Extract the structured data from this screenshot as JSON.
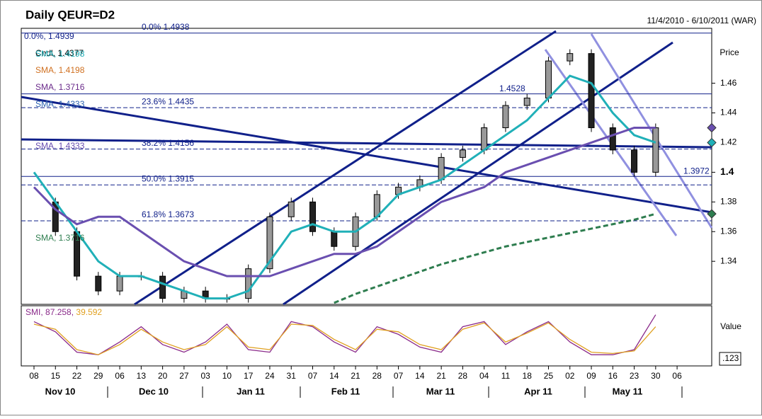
{
  "chart_data": {
    "type": "candlestick",
    "title": "Daily QEUR=D2",
    "subtitle": "11/4/2010 - 6/10/2011 (WAR)",
    "y_axis_label": "Price",
    "categories": [
      "08",
      "15",
      "22",
      "29",
      "06",
      "13",
      "20",
      "27",
      "03",
      "10",
      "17",
      "24",
      "31",
      "07",
      "14",
      "21",
      "28",
      "07",
      "14",
      "21",
      "28",
      "04",
      "11",
      "18",
      "25",
      "02",
      "09",
      "16",
      "23",
      "30",
      "06"
    ],
    "months": [
      "Nov 10",
      "Dec 10",
      "Jan 11",
      "Feb 11",
      "Mar 11",
      "Apr 11",
      "May 11"
    ],
    "ylim": [
      1.311,
      1.497
    ],
    "yticks": [
      1.34,
      1.36,
      1.38,
      1.4,
      1.42,
      1.44,
      1.46
    ],
    "close": [
      1.38,
      1.36,
      1.33,
      1.32,
      1.33,
      1.33,
      1.315,
      1.32,
      1.315,
      1.315,
      1.335,
      1.37,
      1.38,
      1.36,
      1.35,
      1.37,
      1.385,
      1.39,
      1.395,
      1.41,
      1.415,
      1.43,
      1.445,
      1.45,
      1.475,
      1.48,
      1.43,
      1.415,
      1.4,
      1.43,
      null
    ],
    "series": [
      {
        "name": "SMA, 1.4198",
        "color": "#20b0b8",
        "values": [
          1.4,
          1.38,
          1.36,
          1.34,
          1.33,
          1.33,
          1.325,
          1.32,
          1.315,
          1.315,
          1.32,
          1.34,
          1.36,
          1.365,
          1.36,
          1.36,
          1.37,
          1.385,
          1.39,
          1.395,
          1.405,
          1.415,
          1.425,
          1.435,
          1.45,
          1.465,
          1.46,
          1.44,
          1.425,
          1.42,
          null
        ]
      },
      {
        "name": "SMA, 1.4333",
        "color": "#6a4fb0",
        "values": [
          1.39,
          1.375,
          1.365,
          1.37,
          1.37,
          1.36,
          1.35,
          1.34,
          1.335,
          1.33,
          1.33,
          1.33,
          1.335,
          1.34,
          1.345,
          1.345,
          1.35,
          1.36,
          1.37,
          1.38,
          1.385,
          1.39,
          1.4,
          1.405,
          1.41,
          1.415,
          1.42,
          1.425,
          1.43,
          1.43,
          null
        ]
      },
      {
        "name": "SMA, 1.3716",
        "color": "#2e7d4f",
        "dashed": true,
        "values": [
          null,
          null,
          null,
          null,
          null,
          null,
          null,
          null,
          null,
          null,
          null,
          null,
          null,
          null,
          1.312,
          1.318,
          1.323,
          1.328,
          1.333,
          1.338,
          1.342,
          1.346,
          1.35,
          1.353,
          1.356,
          1.359,
          1.362,
          1.365,
          1.368,
          1.372,
          null
        ]
      }
    ],
    "legend": [
      "0.0%, 1.4939",
      "Cndl, 1.4377",
      "SMA, 1.4198",
      "SMA, 1.3716",
      "SMA, 1.4333"
    ],
    "fib": [
      {
        "label": "0.0%   1.4938",
        "value": 1.4938
      },
      {
        "label": "23.6%   1.4435",
        "value": 1.4435
      },
      {
        "label": "38.2%   1.4156",
        "value": 1.4156
      },
      {
        "label": "50.0%   1.3915",
        "value": 1.3915
      },
      {
        "label": "61.8%   1.3673",
        "value": 1.3673
      }
    ],
    "price_labels": [
      {
        "label": "1.3972",
        "value": 1.3972
      },
      {
        "label": "1.4528",
        "value": 1.4528
      }
    ],
    "smi": {
      "legend_name": "SMI,",
      "legend_v1": "87.258,",
      "legend_v2": "39.592",
      "axis_label": "Value",
      "box_label": ".123",
      "ylim": [
        -100,
        100
      ],
      "series": [
        {
          "color": "#8a2a8a",
          "values": [
            60,
            20,
            -60,
            -70,
            -20,
            40,
            -30,
            -60,
            -20,
            50,
            -50,
            -60,
            60,
            40,
            -20,
            -60,
            40,
            10,
            -40,
            -60,
            40,
            60,
            -30,
            20,
            60,
            -20,
            -70,
            -70,
            -50,
            87,
            null
          ]
        },
        {
          "color": "#e0a020",
          "values": [
            50,
            30,
            -50,
            -70,
            -30,
            30,
            -20,
            -50,
            -30,
            40,
            -40,
            -50,
            50,
            45,
            -10,
            -50,
            30,
            20,
            -30,
            -50,
            30,
            55,
            -20,
            15,
            55,
            -10,
            -60,
            -65,
            -55,
            40,
            null
          ]
        }
      ]
    }
  }
}
